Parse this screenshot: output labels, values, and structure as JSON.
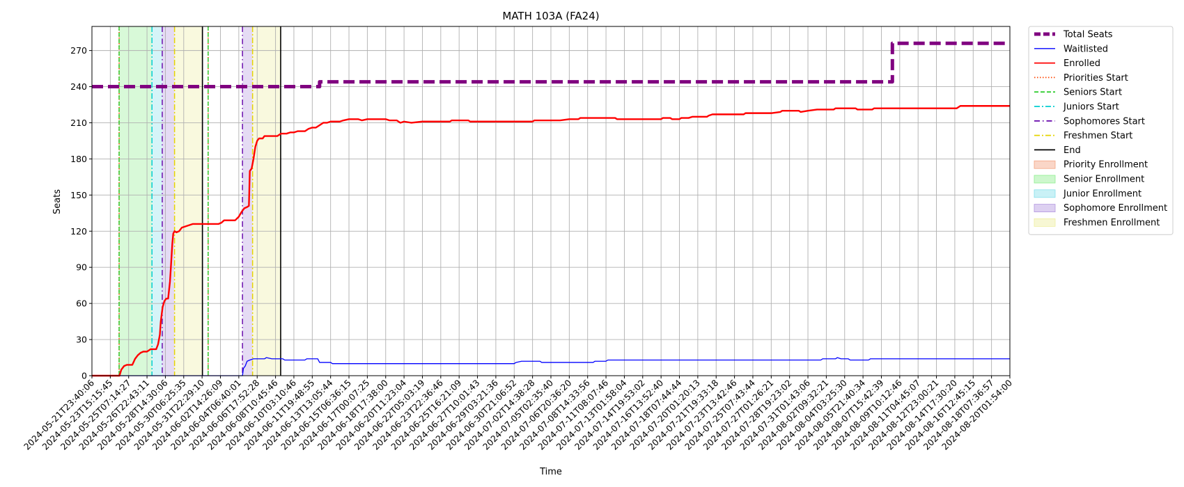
{
  "chart_data": {
    "type": "line",
    "title": "MATH 103A (FA24)",
    "xlabel": "Time",
    "ylabel": "Seats",
    "ylim": [
      0,
      290
    ],
    "yticks": [
      0,
      30,
      60,
      90,
      120,
      150,
      180,
      210,
      240,
      270
    ],
    "grid": true,
    "legend_position": "outside-right-top",
    "x_tick_labels": [
      "2024-05-21T23:40:06",
      "2024-05-23T15:15:45",
      "2024-05-25T07:14:27",
      "2024-05-26T22:43:11",
      "2024-05-28T14:30:06",
      "2024-05-30T06:25:35",
      "2024-05-31T22:29:10",
      "2024-06-02T14:26:09",
      "2024-06-04T06:40:01",
      "2024-06-06T17:52:28",
      "2024-06-08T10:45:46",
      "2024-06-10T03:10:46",
      "2024-06-11T19:48:55",
      "2024-06-13T13:05:44",
      "2024-06-15T06:36:15",
      "2024-06-17T00:07:25",
      "2024-06-18T17:38:00",
      "2024-06-20T11:23:04",
      "2024-06-22T05:03:19",
      "2024-06-23T22:36:46",
      "2024-06-25T16:21:09",
      "2024-06-27T10:01:43",
      "2024-06-29T03:21:36",
      "2024-06-30T21:06:52",
      "2024-07-02T14:38:28",
      "2024-07-05T02:35:40",
      "2024-07-06T20:36:20",
      "2024-07-08T14:33:56",
      "2024-07-11T08:07:46",
      "2024-07-13T01:58:04",
      "2024-07-14T19:53:02",
      "2024-07-16T13:52:40",
      "2024-07-18T07:44:44",
      "2024-07-20T01:20:13",
      "2024-07-21T19:33:18",
      "2024-07-23T13:42:46",
      "2024-07-25T07:43:44",
      "2024-07-27T01:26:21",
      "2024-07-28T19:23:02",
      "2024-07-31T01:43:06",
      "2024-08-02T09:32:21",
      "2024-08-04T03:25:30",
      "2024-08-05T21:40:34",
      "2024-08-07T15:42:39",
      "2024-08-09T10:12:46",
      "2024-08-11T04:45:07",
      "2024-08-12T23:00:21",
      "2024-08-14T17:30:20",
      "2024-08-16T12:45:15",
      "2024-08-18T07:36:57",
      "2024-08-20T01:54:00"
    ],
    "series": [
      {
        "name": "Total Seats",
        "color": "#800080",
        "style": "dashed",
        "points": [
          [
            0,
            240
          ],
          [
            12.4,
            240
          ],
          [
            12.4,
            244
          ],
          [
            43.6,
            244
          ],
          [
            43.6,
            276
          ],
          [
            50,
            276
          ]
        ]
      },
      {
        "name": "Waitlisted",
        "color": "#0000ff",
        "style": "solid",
        "points": [
          [
            0,
            0
          ],
          [
            8.2,
            0
          ],
          [
            8.25,
            6
          ],
          [
            8.35,
            8
          ],
          [
            8.45,
            12
          ],
          [
            8.6,
            13
          ],
          [
            8.8,
            14
          ],
          [
            9.4,
            14
          ],
          [
            9.5,
            15
          ],
          [
            9.8,
            14
          ],
          [
            10.4,
            14
          ],
          [
            10.5,
            13
          ],
          [
            11.6,
            13
          ],
          [
            11.7,
            14
          ],
          [
            12.3,
            14
          ],
          [
            12.4,
            11
          ],
          [
            13.0,
            11
          ],
          [
            13.1,
            10
          ],
          [
            23.0,
            10
          ],
          [
            23.1,
            11
          ],
          [
            23.4,
            12
          ],
          [
            24.4,
            12
          ],
          [
            24.5,
            11
          ],
          [
            27.3,
            11
          ],
          [
            27.4,
            12
          ],
          [
            28.0,
            12
          ],
          [
            28.1,
            13
          ],
          [
            39.7,
            13
          ],
          [
            39.8,
            14
          ],
          [
            40.5,
            14
          ],
          [
            40.6,
            15
          ],
          [
            40.8,
            14
          ],
          [
            41.2,
            14
          ],
          [
            41.3,
            13
          ],
          [
            42.3,
            13
          ],
          [
            42.4,
            14
          ],
          [
            50,
            14
          ]
        ]
      },
      {
        "name": "Enrolled",
        "color": "#ff0000",
        "style": "solid",
        "points": [
          [
            0,
            0
          ],
          [
            1.5,
            0
          ],
          [
            1.6,
            5
          ],
          [
            1.75,
            8
          ],
          [
            1.9,
            9
          ],
          [
            2.05,
            9
          ],
          [
            2.2,
            9
          ],
          [
            2.35,
            14
          ],
          [
            2.5,
            17
          ],
          [
            2.65,
            19
          ],
          [
            2.8,
            20
          ],
          [
            3.0,
            20
          ],
          [
            3.2,
            22
          ],
          [
            3.35,
            22
          ],
          [
            3.5,
            22
          ],
          [
            3.6,
            26
          ],
          [
            3.7,
            34
          ],
          [
            3.75,
            45
          ],
          [
            3.85,
            57
          ],
          [
            3.95,
            62
          ],
          [
            4.05,
            64
          ],
          [
            4.15,
            64
          ],
          [
            4.25,
            78
          ],
          [
            4.3,
            90
          ],
          [
            4.38,
            110
          ],
          [
            4.43,
            118
          ],
          [
            4.5,
            120
          ],
          [
            4.6,
            119
          ],
          [
            4.75,
            120
          ],
          [
            4.9,
            123
          ],
          [
            5.1,
            124
          ],
          [
            5.3,
            125
          ],
          [
            5.5,
            126
          ],
          [
            6.4,
            126
          ],
          [
            6.9,
            126
          ],
          [
            7.05,
            127
          ],
          [
            7.2,
            129
          ],
          [
            7.5,
            129
          ],
          [
            7.8,
            129
          ],
          [
            8.0,
            132
          ],
          [
            8.15,
            136
          ],
          [
            8.3,
            139
          ],
          [
            8.45,
            140
          ],
          [
            8.55,
            141
          ],
          [
            8.6,
            170
          ],
          [
            8.7,
            172
          ],
          [
            8.8,
            180
          ],
          [
            8.9,
            190
          ],
          [
            9.0,
            195
          ],
          [
            9.1,
            197
          ],
          [
            9.3,
            197
          ],
          [
            9.4,
            199
          ],
          [
            10.1,
            199
          ],
          [
            10.2,
            200
          ],
          [
            10.3,
            201
          ],
          [
            10.6,
            201
          ],
          [
            10.8,
            202
          ],
          [
            11.0,
            202
          ],
          [
            11.2,
            203
          ],
          [
            11.6,
            203
          ],
          [
            11.8,
            205
          ],
          [
            12.0,
            206
          ],
          [
            12.2,
            206
          ],
          [
            12.4,
            208
          ],
          [
            12.6,
            210
          ],
          [
            12.8,
            210
          ],
          [
            13.0,
            211
          ],
          [
            13.5,
            211
          ],
          [
            13.7,
            212
          ],
          [
            14.0,
            213
          ],
          [
            14.5,
            213
          ],
          [
            14.7,
            212
          ],
          [
            15.0,
            213
          ],
          [
            16.0,
            213
          ],
          [
            16.2,
            212
          ],
          [
            16.6,
            212
          ],
          [
            16.8,
            210
          ],
          [
            17.0,
            211
          ],
          [
            17.4,
            210
          ],
          [
            18.0,
            211
          ],
          [
            19.5,
            211
          ],
          [
            19.6,
            212
          ],
          [
            20.5,
            212
          ],
          [
            20.6,
            211
          ],
          [
            24.0,
            211
          ],
          [
            24.1,
            212
          ],
          [
            25.0,
            212
          ],
          [
            25.2,
            212
          ],
          [
            25.5,
            212
          ],
          [
            26.0,
            213
          ],
          [
            26.5,
            213
          ],
          [
            26.6,
            214
          ],
          [
            28.5,
            214
          ],
          [
            28.6,
            213
          ],
          [
            31.0,
            213
          ],
          [
            31.1,
            214
          ],
          [
            31.5,
            214
          ],
          [
            31.6,
            213
          ],
          [
            32.0,
            213
          ],
          [
            32.1,
            214
          ],
          [
            32.5,
            214
          ],
          [
            32.7,
            215
          ],
          [
            33.5,
            215
          ],
          [
            33.6,
            216
          ],
          [
            33.8,
            217
          ],
          [
            35.5,
            217
          ],
          [
            35.6,
            218
          ],
          [
            37.0,
            218
          ],
          [
            37.5,
            219
          ],
          [
            37.6,
            220
          ],
          [
            38.5,
            220
          ],
          [
            38.6,
            219
          ],
          [
            39.0,
            220
          ],
          [
            39.5,
            221
          ],
          [
            40.4,
            221
          ],
          [
            40.5,
            222
          ],
          [
            41.6,
            222
          ],
          [
            41.7,
            221
          ],
          [
            42.5,
            221
          ],
          [
            42.6,
            222
          ],
          [
            47.1,
            222
          ],
          [
            47.2,
            223
          ],
          [
            47.3,
            224
          ],
          [
            50,
            224
          ]
        ]
      }
    ],
    "vertical_lines": [
      {
        "name": "Priorities Start",
        "color": "#ff4500",
        "style": "dotted",
        "x": [
          1.48,
          6.33
        ]
      },
      {
        "name": "Seniors Start",
        "color": "#32cd32",
        "style": "dashed",
        "x": [
          1.48,
          6.33
        ]
      },
      {
        "name": "Juniors Start",
        "color": "#00ced1",
        "style": "dashdot",
        "x": [
          3.27
        ]
      },
      {
        "name": "Sophomores Start",
        "color": "#6a0dad",
        "style": "dashdotted",
        "x": [
          3.83,
          8.2
        ]
      },
      {
        "name": "Freshmen Start",
        "color": "#e5d400",
        "style": "dashdot",
        "x": [
          4.5,
          8.75
        ]
      },
      {
        "name": "End",
        "color": "#000000",
        "style": "solid",
        "x": [
          6.02,
          10.28
        ]
      }
    ],
    "shaded_regions": [
      {
        "name": "Priority Enrollment",
        "color": "#f4a582",
        "ranges": []
      },
      {
        "name": "Senior Enrollment",
        "color": "#90ee90",
        "ranges": [
          [
            1.48,
            3.27
          ]
        ]
      },
      {
        "name": "Junior Enrollment",
        "color": "#87e0eb",
        "ranges": [
          [
            3.27,
            3.83
          ]
        ]
      },
      {
        "name": "Sophomore Enrollment",
        "color": "#b497e0",
        "ranges": [
          [
            3.83,
            4.5
          ],
          [
            8.2,
            8.75
          ]
        ]
      },
      {
        "name": "Freshmen Enrollment",
        "color": "#eeeea0",
        "ranges": [
          [
            4.5,
            6.02
          ],
          [
            8.75,
            10.28
          ]
        ]
      }
    ],
    "legend": [
      {
        "label": "Total Seats",
        "kind": "line",
        "color": "#800080",
        "style": "dashed-thick"
      },
      {
        "label": "Waitlisted",
        "kind": "line",
        "color": "#0000ff",
        "style": "solid-thin"
      },
      {
        "label": "Enrolled",
        "kind": "line",
        "color": "#ff0000",
        "style": "solid"
      },
      {
        "label": "Priorities Start",
        "kind": "line",
        "color": "#ff4500",
        "style": "dotted"
      },
      {
        "label": "Seniors Start",
        "kind": "line",
        "color": "#32cd32",
        "style": "dashed"
      },
      {
        "label": "Juniors Start",
        "kind": "line",
        "color": "#00ced1",
        "style": "dashdot"
      },
      {
        "label": "Sophomores Start",
        "kind": "line",
        "color": "#6a0dad",
        "style": "dashdotted"
      },
      {
        "label": "Freshmen Start",
        "kind": "line",
        "color": "#e5d400",
        "style": "dashdot"
      },
      {
        "label": "End",
        "kind": "line",
        "color": "#000000",
        "style": "solid"
      },
      {
        "label": "Priority Enrollment",
        "kind": "patch",
        "color": "#f4a582"
      },
      {
        "label": "Senior Enrollment",
        "kind": "patch",
        "color": "#90ee90"
      },
      {
        "label": "Junior Enrollment",
        "kind": "patch",
        "color": "#87e0eb"
      },
      {
        "label": "Sophomore Enrollment",
        "kind": "patch",
        "color": "#b497e0"
      },
      {
        "label": "Freshmen Enrollment",
        "kind": "patch",
        "color": "#eeeea0"
      }
    ]
  }
}
